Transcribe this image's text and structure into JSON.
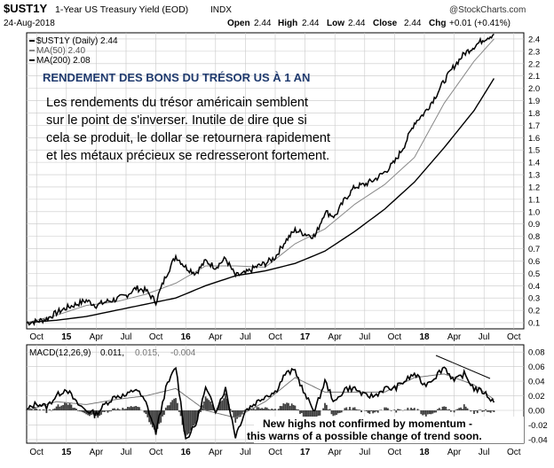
{
  "header": {
    "symbol": "$UST1Y",
    "description": "1-Year US Treasury Yield (EOD)",
    "exchange": "INDX",
    "watermark": "@StockCharts.com",
    "date": "24-Aug-2018",
    "quote": {
      "open_label": "Open",
      "open": "2.44",
      "high_label": "High",
      "high": "2.44",
      "low_label": "Low",
      "low": "2.44",
      "close_label": "Close",
      "close": "2.44",
      "chg_label": "Chg",
      "chg": "+0.01 (+0.41%)"
    }
  },
  "legend": [
    {
      "label": "$UST1Y (Daily) 2.44",
      "color": "#000000"
    },
    {
      "label": "MA(50) 2.40",
      "color": "#888888"
    },
    {
      "label": "MA(200) 2.08",
      "color": "#000000"
    }
  ],
  "annotation": {
    "title": "RENDEMENT DES BONS DU TRÉSOR US À 1 AN",
    "lines": [
      "Les rendements du trésor américain semblent",
      "sur le point de s'inverser. Inutile de dire que si",
      "cela se produit, le dollar se retournera rapidement",
      "et les métaux précieux se redresseront fortement."
    ]
  },
  "macd_legend": {
    "label": "MACD(12,26,9)",
    "v1": "0.011,",
    "v2": "0.015,",
    "v3": "-0.004"
  },
  "macd_note": {
    "lines": [
      "New highs not confirmed by momentum -",
      "this warns of a possible change of trend soon."
    ]
  },
  "colors": {
    "grid": "#c8c8c8",
    "price": "#000000",
    "ma50": "#888888",
    "ma200": "#000000",
    "hist": "#404040",
    "title": "#1f3a6e"
  },
  "chart_data": [
    {
      "type": "line",
      "x_ticks": [
        "Oct",
        "15",
        "Apr",
        "Jul",
        "Oct",
        "16",
        "Apr",
        "Jul",
        "Oct",
        "17",
        "Apr",
        "Jul",
        "Oct",
        "18",
        "Apr",
        "Jul",
        "Oct"
      ],
      "y_ticks": [
        "0.1",
        "0.2",
        "0.3",
        "0.4",
        "0.5",
        "0.6",
        "0.7",
        "0.8",
        "0.9",
        "1.0",
        "1.1",
        "1.2",
        "1.3",
        "1.4",
        "1.5",
        "1.6",
        "1.7",
        "1.8",
        "1.9",
        "2.0",
        "2.1",
        "2.2",
        "2.3",
        "2.4"
      ],
      "ylim": [
        0.05,
        2.45
      ],
      "series": [
        {
          "name": "$UST1Y (Daily)",
          "x": [
            "2014-09",
            "2014-10",
            "2014-11",
            "2014-12",
            "2015-01",
            "2015-02",
            "2015-03",
            "2015-04",
            "2015-05",
            "2015-06",
            "2015-07",
            "2015-08",
            "2015-09",
            "2015-10",
            "2015-11",
            "2015-12",
            "2016-01",
            "2016-02",
            "2016-03",
            "2016-04",
            "2016-05",
            "2016-06",
            "2016-07",
            "2016-08",
            "2016-09",
            "2016-10",
            "2016-11",
            "2016-12",
            "2017-01",
            "2017-02",
            "2017-03",
            "2017-04",
            "2017-05",
            "2017-06",
            "2017-07",
            "2017-08",
            "2017-09",
            "2017-10",
            "2017-11",
            "2017-12",
            "2018-01",
            "2018-02",
            "2018-03",
            "2018-04",
            "2018-05",
            "2018-06",
            "2018-07",
            "2018-08"
          ],
          "values": [
            0.1,
            0.11,
            0.13,
            0.18,
            0.22,
            0.25,
            0.28,
            0.24,
            0.27,
            0.29,
            0.32,
            0.38,
            0.36,
            0.27,
            0.48,
            0.64,
            0.55,
            0.5,
            0.6,
            0.55,
            0.62,
            0.48,
            0.5,
            0.55,
            0.58,
            0.63,
            0.76,
            0.85,
            0.82,
            0.8,
            1.0,
            0.96,
            1.1,
            1.2,
            1.22,
            1.26,
            1.32,
            1.4,
            1.54,
            1.72,
            1.8,
            1.92,
            2.06,
            2.18,
            2.28,
            2.34,
            2.4,
            2.44
          ]
        },
        {
          "name": "MA(50)",
          "x": [
            "2014-09",
            "2014-12",
            "2015-03",
            "2015-06",
            "2015-09",
            "2015-12",
            "2016-03",
            "2016-06",
            "2016-09",
            "2016-12",
            "2017-03",
            "2017-06",
            "2017-09",
            "2017-12",
            "2018-03",
            "2018-06",
            "2018-08"
          ],
          "values": [
            0.1,
            0.16,
            0.24,
            0.27,
            0.33,
            0.42,
            0.56,
            0.56,
            0.55,
            0.74,
            0.86,
            1.06,
            1.22,
            1.44,
            1.88,
            2.22,
            2.4
          ]
        },
        {
          "name": "MA(200)",
          "x": [
            "2014-09",
            "2014-12",
            "2015-03",
            "2015-06",
            "2015-09",
            "2015-12",
            "2016-03",
            "2016-06",
            "2016-09",
            "2016-12",
            "2017-03",
            "2017-06",
            "2017-09",
            "2017-12",
            "2018-03",
            "2018-06",
            "2018-08"
          ],
          "values": [
            0.1,
            0.12,
            0.15,
            0.2,
            0.25,
            0.3,
            0.4,
            0.48,
            0.52,
            0.58,
            0.68,
            0.84,
            1.02,
            1.24,
            1.52,
            1.82,
            2.08
          ]
        }
      ]
    },
    {
      "type": "line",
      "x_ticks": [
        "Oct",
        "15",
        "Apr",
        "Jul",
        "Oct",
        "16",
        "Apr",
        "Jul",
        "Oct",
        "17",
        "Apr",
        "Jul",
        "Oct",
        "18",
        "Apr",
        "Jul",
        "Oct"
      ],
      "y_ticks": [
        "-0.04",
        "-0.02",
        "0.00",
        "0.02",
        "0.04",
        "0.06",
        "0.08"
      ],
      "ylim": [
        -0.045,
        0.09
      ],
      "series": [
        {
          "name": "MACD",
          "x": [
            "2014-09",
            "2014-10",
            "2014-11",
            "2014-12",
            "2015-01",
            "2015-02",
            "2015-03",
            "2015-04",
            "2015-05",
            "2015-06",
            "2015-07",
            "2015-08",
            "2015-09",
            "2015-10",
            "2015-11",
            "2015-12",
            "2016-01",
            "2016-02",
            "2016-03",
            "2016-04",
            "2016-05",
            "2016-06",
            "2016-07",
            "2016-08",
            "2016-09",
            "2016-10",
            "2016-11",
            "2016-12",
            "2017-01",
            "2017-02",
            "2017-03",
            "2017-04",
            "2017-05",
            "2017-06",
            "2017-07",
            "2017-08",
            "2017-09",
            "2017-10",
            "2017-11",
            "2017-12",
            "2018-01",
            "2018-02",
            "2018-03",
            "2018-04",
            "2018-05",
            "2018-06",
            "2018-07",
            "2018-08"
          ],
          "values": [
            0.0,
            0.01,
            0.005,
            0.02,
            0.03,
            0.01,
            0.0,
            -0.005,
            0.01,
            0.02,
            0.02,
            0.03,
            0.01,
            -0.03,
            0.03,
            0.06,
            -0.04,
            -0.02,
            0.03,
            0.0,
            0.03,
            -0.035,
            0.0,
            0.01,
            0.02,
            0.025,
            0.05,
            0.055,
            0.02,
            0.0,
            0.04,
            0.01,
            0.03,
            0.03,
            0.02,
            0.02,
            0.03,
            0.03,
            0.04,
            0.05,
            0.035,
            0.045,
            0.06,
            0.04,
            0.05,
            0.03,
            0.025,
            0.011
          ]
        },
        {
          "name": "Signal",
          "x": [
            "2014-09",
            "2014-12",
            "2015-03",
            "2015-06",
            "2015-09",
            "2015-12",
            "2016-03",
            "2016-06",
            "2016-09",
            "2016-12",
            "2017-03",
            "2017-06",
            "2017-09",
            "2017-12",
            "2018-03",
            "2018-06",
            "2018-08"
          ],
          "values": [
            0.0,
            0.012,
            0.008,
            0.015,
            0.02,
            0.03,
            0.0,
            -0.01,
            0.012,
            0.045,
            0.025,
            0.025,
            0.025,
            0.045,
            0.05,
            0.035,
            0.015
          ]
        }
      ]
    }
  ]
}
